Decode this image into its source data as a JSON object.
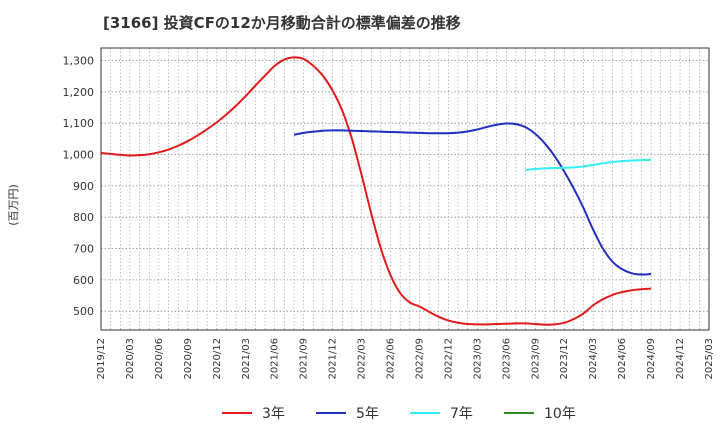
{
  "chart_data": {
    "type": "line",
    "title": "[3166]  投資CFの12か月移動合計の標準偏差の推移",
    "ylabel": "(百万円)",
    "ylim": [
      440,
      1340
    ],
    "yticks": [
      500,
      600,
      700,
      800,
      900,
      1000,
      1100,
      1200,
      1300
    ],
    "ytick_labels": [
      "500",
      "600",
      "700",
      "800",
      "900",
      "1,000",
      "1,100",
      "1,200",
      "1,300"
    ],
    "xlim": [
      "2019/12",
      "2025/03"
    ],
    "xtick_labels": [
      "2019/12",
      "2020/03",
      "2020/06",
      "2020/09",
      "2020/12",
      "2021/03",
      "2021/06",
      "2021/09",
      "2021/12",
      "2022/03",
      "2022/06",
      "2022/09",
      "2022/12",
      "2023/03",
      "2023/06",
      "2023/09",
      "2023/12",
      "2024/03",
      "2024/06",
      "2024/09",
      "2024/12",
      "2025/03"
    ],
    "grid": true,
    "legend_position": "bottom",
    "series": [
      {
        "name": "3年",
        "color": "#e31a1c",
        "x": [
          "2019/12",
          "2020/01",
          "2020/02",
          "2020/03",
          "2020/04",
          "2020/05",
          "2020/06",
          "2020/07",
          "2020/08",
          "2020/09",
          "2020/10",
          "2020/11",
          "2020/12",
          "2021/01",
          "2021/02",
          "2021/03",
          "2021/04",
          "2021/05",
          "2021/06",
          "2021/07",
          "2021/08",
          "2021/09",
          "2021/10",
          "2021/11",
          "2021/12",
          "2022/01",
          "2022/02",
          "2022/03",
          "2022/04",
          "2022/05",
          "2022/06",
          "2022/07",
          "2022/08",
          "2022/09",
          "2022/10",
          "2022/11",
          "2022/12",
          "2023/01",
          "2023/02",
          "2023/03",
          "2023/04",
          "2023/05",
          "2023/06",
          "2023/07",
          "2023/08",
          "2023/09",
          "2023/10",
          "2023/11",
          "2023/12",
          "2024/01",
          "2024/02",
          "2024/03",
          "2024/04",
          "2024/05",
          "2024/06",
          "2024/07",
          "2024/08",
          "2024/09"
        ],
        "values": [
          1005,
          1002,
          999,
          997,
          998,
          1001,
          1007,
          1016,
          1028,
          1043,
          1061,
          1081,
          1103,
          1128,
          1156,
          1187,
          1220,
          1252,
          1283,
          1303,
          1310,
          1305,
          1283,
          1251,
          1204,
          1140,
          1050,
          935,
          812,
          700,
          615,
          558,
          528,
          515,
          498,
          482,
          470,
          463,
          459,
          458,
          458,
          459,
          460,
          461,
          461,
          459,
          457,
          458,
          463,
          475,
          493,
          519,
          538,
          552,
          561,
          567,
          570,
          572
        ]
      },
      {
        "name": "5年",
        "color": "#1f2fbf",
        "x": [
          "2021/08",
          "2021/09",
          "2021/10",
          "2021/11",
          "2021/12",
          "2022/01",
          "2022/02",
          "2022/03",
          "2022/04",
          "2022/05",
          "2022/06",
          "2022/07",
          "2022/08",
          "2022/09",
          "2022/10",
          "2022/11",
          "2022/12",
          "2023/01",
          "2023/02",
          "2023/03",
          "2023/04",
          "2023/05",
          "2023/06",
          "2023/07",
          "2023/08",
          "2023/09",
          "2023/10",
          "2023/11",
          "2023/12",
          "2024/01",
          "2024/02",
          "2024/03",
          "2024/04",
          "2024/05",
          "2024/06",
          "2024/07",
          "2024/08",
          "2024/09"
        ],
        "values": [
          1063,
          1069,
          1073,
          1076,
          1077,
          1077,
          1076,
          1075,
          1074,
          1073,
          1072,
          1071,
          1070,
          1069,
          1068,
          1068,
          1068,
          1070,
          1074,
          1080,
          1088,
          1095,
          1099,
          1097,
          1087,
          1066,
          1035,
          995,
          946,
          891,
          829,
          760,
          700,
          658,
          634,
          621,
          617,
          619
        ]
      },
      {
        "name": "7年",
        "color": "#33eef2",
        "x": [
          "2023/08",
          "2023/09",
          "2023/10",
          "2023/11",
          "2023/12",
          "2024/01",
          "2024/02",
          "2024/03",
          "2024/04",
          "2024/05",
          "2024/06",
          "2024/07",
          "2024/08",
          "2024/09"
        ],
        "values": [
          951,
          954,
          956,
          957,
          958,
          959,
          962,
          967,
          972,
          976,
          979,
          981,
          982,
          983
        ]
      },
      {
        "name": "10年",
        "color": "#2e8b22",
        "x": [],
        "values": []
      }
    ]
  }
}
